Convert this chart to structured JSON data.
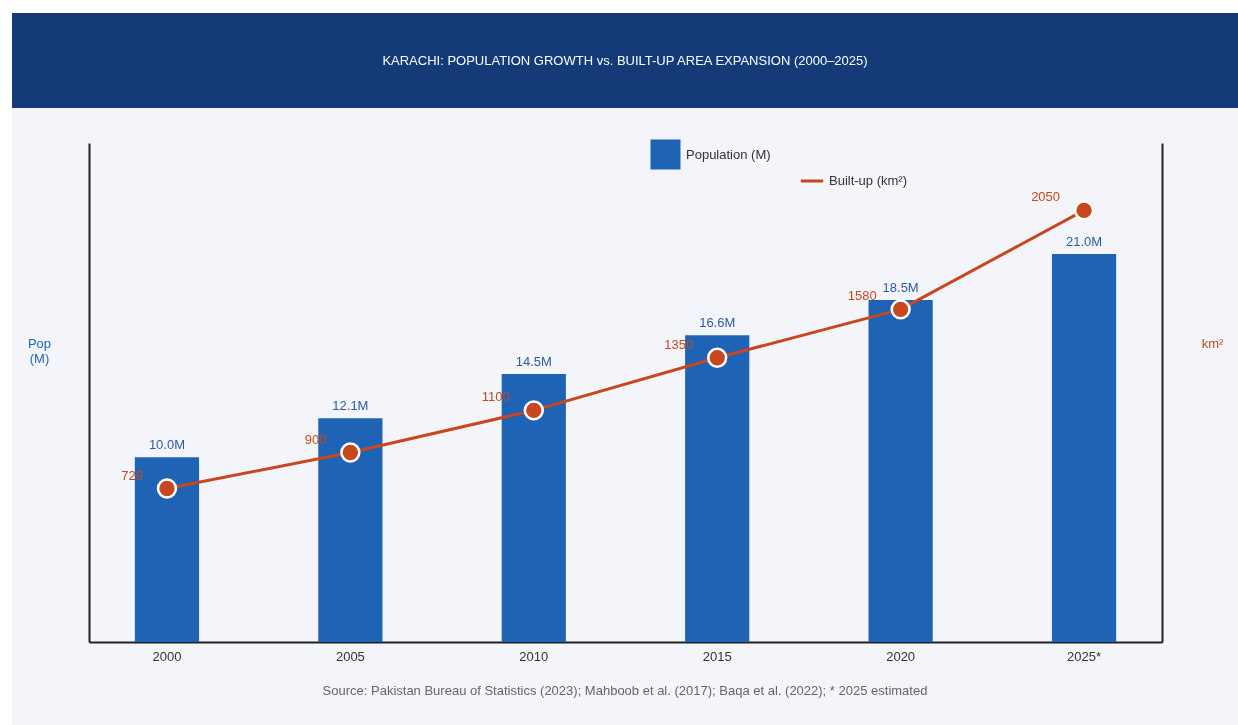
{
  "chart_data": {
    "type": "bar",
    "title": "KARACHI: POPULATION GROWTH vs. BUILT-UP AREA EXPANSION (2000–2025)",
    "ylabel": "Pop (M)",
    "y2label": "km²",
    "categories": [
      "2000",
      "2005",
      "2010",
      "2015",
      "2020",
      "2025*"
    ],
    "series": [
      {
        "name": "Population (M)",
        "color": "#1f63b5",
        "values": [
          10.0,
          12.1,
          14.5,
          16.6,
          18.5,
          21.0
        ],
        "value_labels": [
          "10.0M",
          "12.1M",
          "14.5M",
          "16.6M",
          "18.5M",
          "21.0M"
        ]
      },
      {
        "name": "Built-up (km²)",
        "type": "line",
        "axis": "y2",
        "color": "#c8471f",
        "marker": "circle",
        "values": [
          729,
          900,
          1100,
          1350,
          1580,
          2050
        ],
        "value_labels": [
          "729",
          "900",
          "1100",
          "1350",
          "1580",
          "2050"
        ]
      }
    ],
    "ylim": [
      0,
      27
    ],
    "y2lim": [
      0,
      2370
    ],
    "tick_labels": "x",
    "legend": "top right",
    "annotations": [
      "Source: Pakistan Bureau of Statistics (2023); Mahboob et al. (2017); Baqa et al. (2022); * 2025 estimated"
    ]
  }
}
